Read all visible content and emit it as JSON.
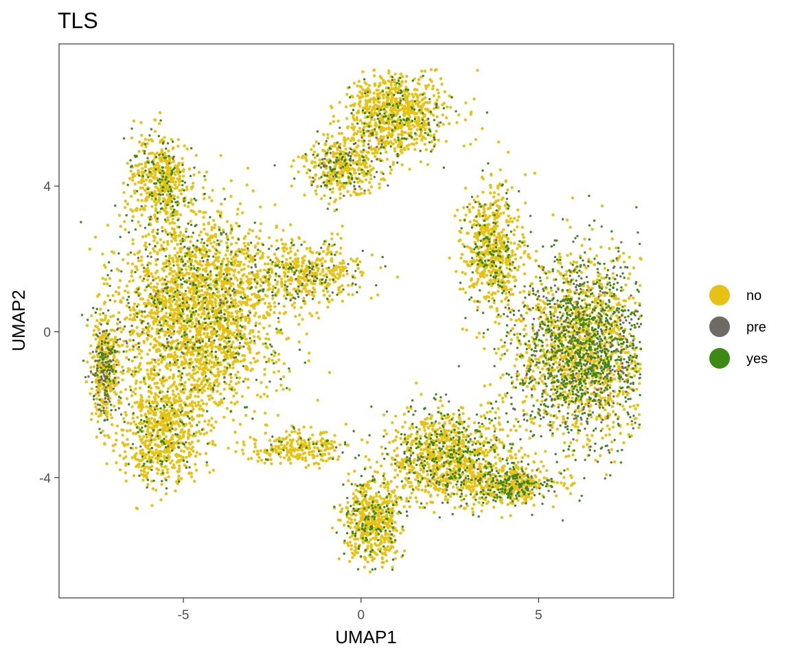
{
  "chart_data": {
    "type": "scatter",
    "title": "TLS",
    "xlabel": "UMAP1",
    "ylabel": "UMAP2",
    "xlim": [
      -8.5,
      8.8
    ],
    "ylim": [
      -7.3,
      7.9
    ],
    "x_ticks": [
      -5,
      0,
      5
    ],
    "y_ticks": [
      -4,
      0,
      4
    ],
    "x_tick_labels": [
      "-5",
      "0",
      "5"
    ],
    "y_tick_labels": [
      "-4",
      "0",
      "4"
    ],
    "grid": false,
    "legend_position": "right",
    "legend": [
      {
        "label": "no",
        "color": "#E8C213"
      },
      {
        "label": "pre",
        "color": "#6E6B66"
      },
      {
        "label": "yes",
        "color": "#3A8A14"
      }
    ],
    "clusters": [
      {
        "name": "left-mass",
        "cx": -4.6,
        "cy": 0.5,
        "sx": 1.6,
        "sy": 1.9,
        "n": 2600,
        "mix": {
          "no": 0.82,
          "pre": 0.03,
          "yes": 0.15
        }
      },
      {
        "name": "left-lower",
        "cx": -5.6,
        "cy": -2.8,
        "sx": 0.8,
        "sy": 1.0,
        "n": 700,
        "mix": {
          "no": 0.84,
          "pre": 0.02,
          "yes": 0.14
        }
      },
      {
        "name": "left-edge",
        "cx": -7.2,
        "cy": -1.0,
        "sx": 0.3,
        "sy": 1.0,
        "n": 450,
        "mix": {
          "no": 0.6,
          "pre": 0.22,
          "yes": 0.18
        }
      },
      {
        "name": "left-top",
        "cx": -5.6,
        "cy": 4.2,
        "sx": 0.6,
        "sy": 0.9,
        "n": 500,
        "mix": {
          "no": 0.76,
          "pre": 0.02,
          "yes": 0.22
        }
      },
      {
        "name": "mid-arm",
        "cx": -1.6,
        "cy": 1.6,
        "sx": 1.2,
        "sy": 0.6,
        "n": 500,
        "mix": {
          "no": 0.8,
          "pre": 0.06,
          "yes": 0.14
        }
      },
      {
        "name": "top-mass",
        "cx": 1.0,
        "cy": 6.0,
        "sx": 1.0,
        "sy": 0.8,
        "n": 900,
        "mix": {
          "no": 0.84,
          "pre": 0.02,
          "yes": 0.14
        }
      },
      {
        "name": "top-lower",
        "cx": -0.5,
        "cy": 4.5,
        "sx": 0.8,
        "sy": 0.6,
        "n": 450,
        "mix": {
          "no": 0.72,
          "pre": 0.12,
          "yes": 0.16
        }
      },
      {
        "name": "right-mass",
        "cx": 6.2,
        "cy": -0.5,
        "sx": 1.4,
        "sy": 1.8,
        "n": 2600,
        "mix": {
          "no": 0.48,
          "pre": 0.17,
          "yes": 0.35
        }
      },
      {
        "name": "right-top",
        "cx": 3.7,
        "cy": 2.3,
        "sx": 0.6,
        "sy": 1.2,
        "n": 650,
        "mix": {
          "no": 0.8,
          "pre": 0.02,
          "yes": 0.18
        }
      },
      {
        "name": "lower-arm",
        "cx": 2.4,
        "cy": -3.4,
        "sx": 1.2,
        "sy": 0.9,
        "n": 1100,
        "mix": {
          "no": 0.72,
          "pre": 0.04,
          "yes": 0.24
        }
      },
      {
        "name": "bottom-lobe",
        "cx": 0.3,
        "cy": -5.2,
        "sx": 0.6,
        "sy": 0.9,
        "n": 600,
        "mix": {
          "no": 0.78,
          "pre": 0.02,
          "yes": 0.2
        }
      },
      {
        "name": "lower-right-arm",
        "cx": 4.2,
        "cy": -4.2,
        "sx": 0.9,
        "sy": 0.4,
        "n": 500,
        "mix": {
          "no": 0.6,
          "pre": 0.1,
          "yes": 0.3
        }
      },
      {
        "name": "bridge-left",
        "cx": -1.8,
        "cy": -3.2,
        "sx": 1.0,
        "sy": 0.3,
        "n": 250,
        "mix": {
          "no": 0.9,
          "pre": 0.01,
          "yes": 0.09
        }
      }
    ]
  }
}
